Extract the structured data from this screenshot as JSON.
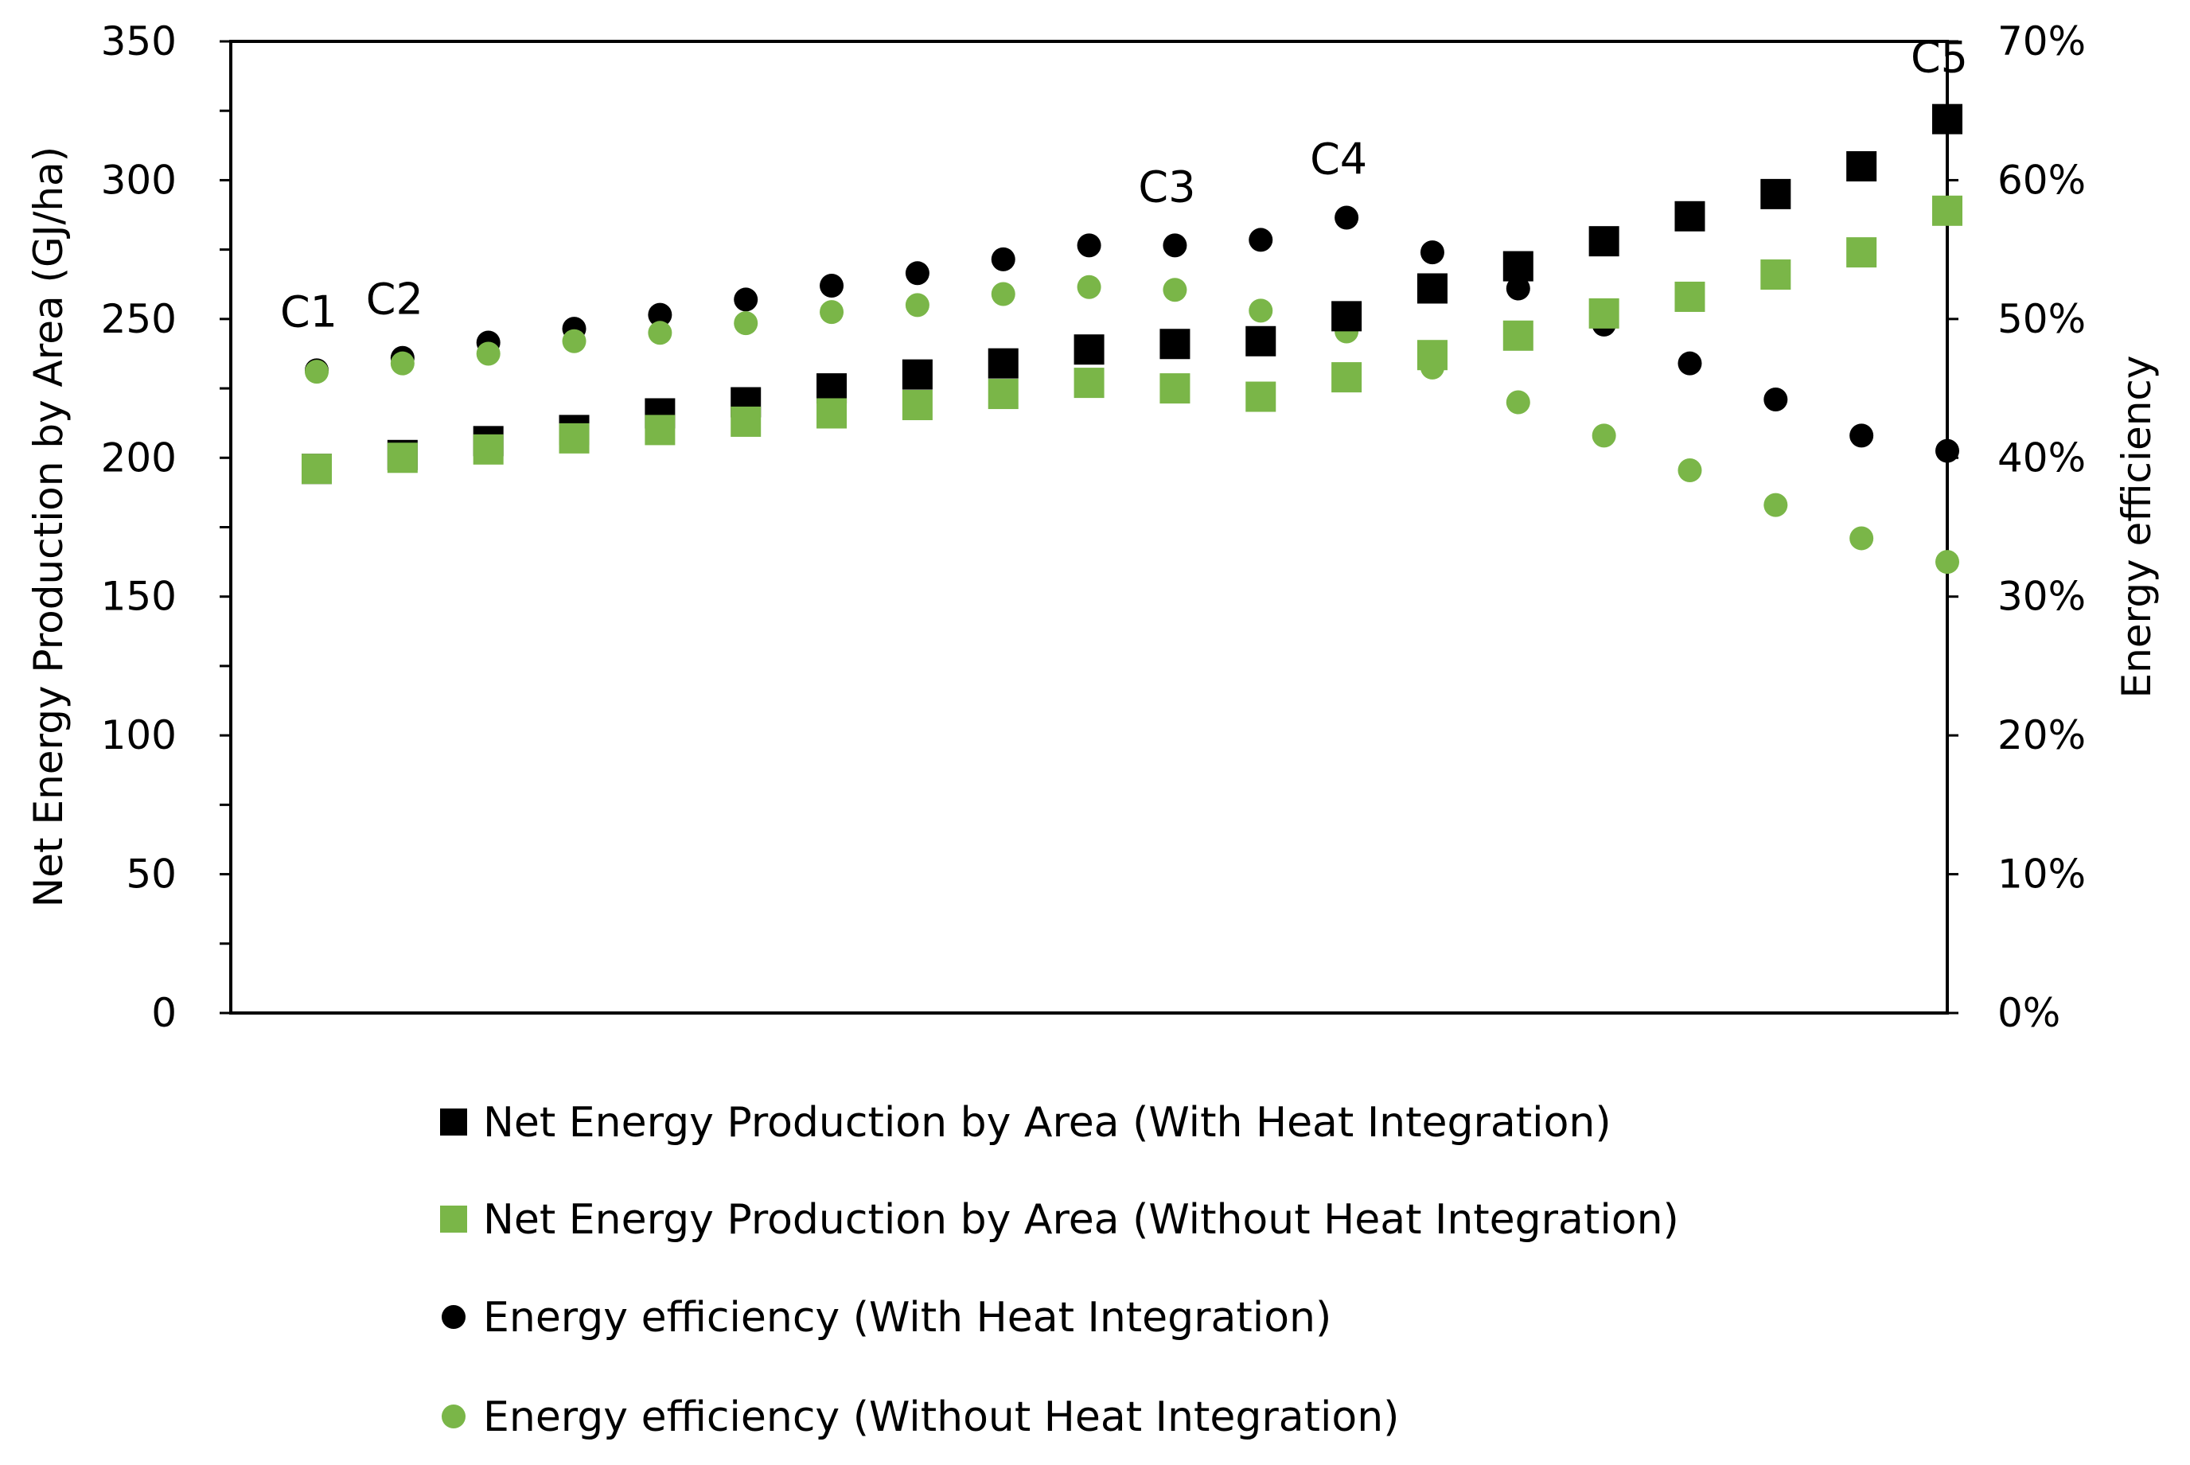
{
  "chart_data": {
    "type": "scatter",
    "categories": [
      "C1",
      "",
      "",
      "",
      "",
      "",
      "",
      "",
      "",
      "",
      "",
      "",
      "",
      "",
      "",
      "",
      "",
      "",
      "",
      "C5"
    ],
    "point_labels": [
      {
        "text": "C1",
        "index": 0
      },
      {
        "text": "C2",
        "index": 1
      },
      {
        "text": "C3",
        "index": 10
      },
      {
        "text": "C4",
        "index": 12
      },
      {
        "text": "C5",
        "index": 19
      }
    ],
    "y_axis_left": {
      "label": "Net Energy Production by Area (GJ/ha)",
      "min": 0,
      "max": 350,
      "step": 50,
      "ticks": [
        "0",
        "50",
        "100",
        "150",
        "200",
        "250",
        "300",
        "350"
      ]
    },
    "y_axis_right": {
      "label": "Energy efficiency",
      "min": 0,
      "max": 0.7,
      "step": 0.1,
      "ticks": [
        "0%",
        "10%",
        "20%",
        "30%",
        "40%",
        "50%",
        "60%",
        "70%"
      ]
    },
    "grid": false,
    "legend_position": "bottom",
    "series": [
      {
        "name": "Net Energy Production by Area (With Heat Integration)",
        "axis": "left",
        "marker": "square",
        "color": "#000000",
        "values": [
          196,
          201,
          206,
          210,
          216,
          220,
          225,
          230,
          234,
          239,
          241,
          242,
          251,
          261,
          269,
          278,
          287,
          295,
          305,
          322
        ]
      },
      {
        "name": "Net Energy Production by Area (Without Heat Integration)",
        "axis": "left",
        "marker": "square",
        "color": "#7ab648",
        "values": [
          196,
          200,
          203,
          207,
          210,
          213,
          216,
          219,
          223,
          227,
          225,
          222,
          229,
          237,
          244,
          252,
          258,
          266,
          274,
          289
        ]
      },
      {
        "name": "Energy efficiency  (With Heat Integration)",
        "axis": "right",
        "marker": "circle",
        "color": "#000000",
        "values": [
          0.463,
          0.472,
          0.483,
          0.493,
          0.503,
          0.514,
          0.524,
          0.533,
          0.543,
          0.553,
          0.553,
          0.557,
          0.573,
          0.548,
          0.522,
          0.496,
          0.468,
          0.442,
          0.416,
          0.405
        ]
      },
      {
        "name": "Energy efficiency  (Without Heat Integration)",
        "axis": "right",
        "marker": "circle",
        "color": "#7ab648",
        "values": [
          0.462,
          0.468,
          0.475,
          0.484,
          0.49,
          0.497,
          0.505,
          0.51,
          0.518,
          0.523,
          0.521,
          0.506,
          0.491,
          0.465,
          0.44,
          0.416,
          0.391,
          0.366,
          0.342,
          0.325
        ]
      }
    ]
  }
}
